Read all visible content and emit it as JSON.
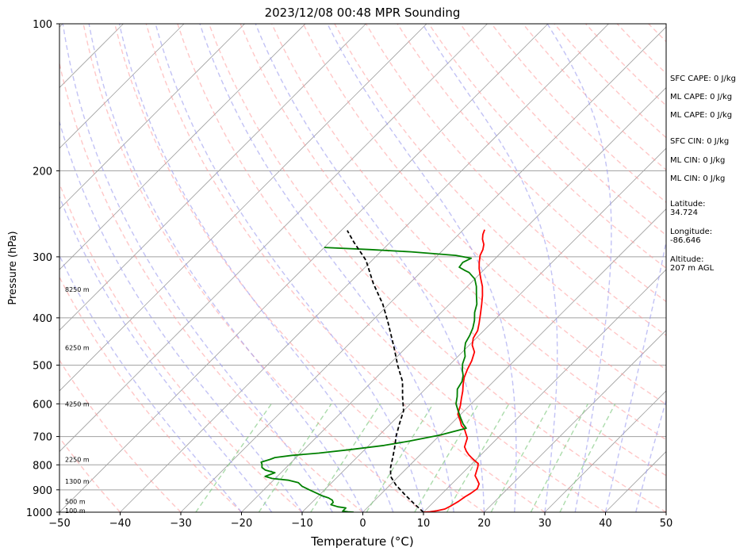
{
  "chart_data": {
    "type": "line",
    "title": "2023/12/08 00:48 MPR Sounding",
    "xlabel": "Temperature (°C)",
    "ylabel": "Pressure (hPa)",
    "xlim": [
      -50,
      50
    ],
    "ylim": [
      1000,
      100
    ],
    "yscale": "log",
    "grid": true,
    "x_ticks": [
      "−50",
      "−40",
      "−30",
      "−20",
      "−10",
      "0",
      "10",
      "20",
      "30",
      "40",
      "50"
    ],
    "x_tick_values": [
      -50,
      -40,
      -30,
      -20,
      -10,
      0,
      10,
      20,
      30,
      40,
      50
    ],
    "y_ticks": [
      "100",
      "200",
      "300",
      "400",
      "500",
      "600",
      "700",
      "800",
      "900",
      "1000"
    ],
    "y_tick_values": [
      100,
      200,
      300,
      400,
      500,
      600,
      700,
      800,
      900,
      1000
    ],
    "height_labels": [
      {
        "text": "8250 m",
        "p": 350
      },
      {
        "text": "6250 m",
        "p": 460
      },
      {
        "text": "4250 m",
        "p": 600
      },
      {
        "text": "2250 m",
        "p": 780
      },
      {
        "text": "1300 m",
        "p": 865
      },
      {
        "text": "500 m",
        "p": 950
      },
      {
        "text": "100 m",
        "p": 993
      }
    ],
    "series": [
      {
        "name": "",
        "color": "#ff0000",
        "points": [
          [
            10,
            1000
          ],
          [
            11,
            998
          ],
          [
            12,
            993
          ],
          [
            13,
            985
          ],
          [
            13.5,
            970
          ],
          [
            14,
            950
          ],
          [
            14.3,
            930
          ],
          [
            14.7,
            915
          ],
          [
            15,
            895
          ],
          [
            14.5,
            875
          ],
          [
            13.5,
            858
          ],
          [
            12.5,
            842
          ],
          [
            12,
            825
          ],
          [
            11.5,
            808
          ],
          [
            11,
            795
          ],
          [
            10,
            785
          ],
          [
            9,
            774
          ],
          [
            8,
            763
          ],
          [
            7,
            750
          ],
          [
            6,
            735
          ],
          [
            5.5,
            720
          ],
          [
            5,
            705
          ],
          [
            4,
            690
          ],
          [
            3,
            675
          ],
          [
            2,
            665
          ],
          [
            1,
            650
          ],
          [
            -0.5,
            630
          ],
          [
            -1.5,
            605
          ],
          [
            -2.5,
            585
          ],
          [
            -3.5,
            565
          ],
          [
            -4.5,
            548
          ],
          [
            -5.5,
            530
          ],
          [
            -6.3,
            510
          ],
          [
            -7,
            490
          ],
          [
            -8,
            470
          ],
          [
            -9.5,
            455
          ],
          [
            -10.5,
            440
          ],
          [
            -11,
            425
          ],
          [
            -12,
            410
          ],
          [
            -13.5,
            390
          ],
          [
            -14.7,
            375
          ],
          [
            -16,
            360
          ],
          [
            -17.5,
            345
          ],
          [
            -19,
            333
          ],
          [
            -20,
            325
          ],
          [
            -21,
            317
          ],
          [
            -22,
            308
          ],
          [
            -23,
            298
          ],
          [
            -23.5,
            290
          ],
          [
            -24.2,
            283
          ],
          [
            -25.3,
            276
          ],
          [
            -26,
            270
          ],
          [
            -26.5,
            264
          ]
        ]
      },
      {
        "name": "",
        "color": "#008000",
        "points": [
          [
            -1.5,
            1000
          ],
          [
            -2.5,
            998
          ],
          [
            -3.5,
            995
          ],
          [
            -3.5,
            980
          ],
          [
            -5,
            975
          ],
          [
            -6.5,
            965
          ],
          [
            -6.5,
            955
          ],
          [
            -7,
            945
          ],
          [
            -8,
            935
          ],
          [
            -9.5,
            925
          ],
          [
            -11,
            912
          ],
          [
            -12.5,
            900
          ],
          [
            -14.3,
            885
          ],
          [
            -15.5,
            870
          ],
          [
            -17.5,
            860
          ],
          [
            -20.5,
            853
          ],
          [
            -22,
            845
          ],
          [
            -21,
            830
          ],
          [
            -23,
            820
          ],
          [
            -24,
            810
          ],
          [
            -24.5,
            798
          ],
          [
            -25,
            790
          ],
          [
            -24,
            780
          ],
          [
            -23.5,
            773
          ],
          [
            -21,
            765
          ],
          [
            -17,
            757
          ],
          [
            -12.5,
            745
          ],
          [
            -7.5,
            730
          ],
          [
            -4,
            715
          ],
          [
            0,
            695
          ],
          [
            3.2,
            673
          ],
          [
            2,
            660
          ],
          [
            0.5,
            640
          ],
          [
            -1,
            620
          ],
          [
            -2.5,
            600
          ],
          [
            -3.5,
            580
          ],
          [
            -4.7,
            560
          ],
          [
            -5.2,
            540
          ],
          [
            -6,
            525
          ],
          [
            -7,
            512
          ],
          [
            -8,
            497
          ],
          [
            -8.8,
            480
          ],
          [
            -10,
            465
          ],
          [
            -11,
            450
          ],
          [
            -11.5,
            435
          ],
          [
            -12.2,
            420
          ],
          [
            -13.2,
            405
          ],
          [
            -14.5,
            390
          ],
          [
            -15.5,
            375
          ],
          [
            -17,
            360
          ],
          [
            -18.5,
            345
          ],
          [
            -20,
            333
          ],
          [
            -21,
            328
          ],
          [
            -22,
            323
          ],
          [
            -23,
            320
          ],
          [
            -24.5,
            315
          ],
          [
            -24.7,
            308
          ],
          [
            -24,
            302
          ],
          [
            -27,
            298
          ],
          [
            -35,
            293
          ],
          [
            -42,
            290
          ],
          [
            -50,
            287
          ]
        ]
      },
      {
        "name": "",
        "color": "#000000",
        "dashed": true,
        "points": [
          [
            10,
            1000
          ],
          [
            7,
            960
          ],
          [
            4,
            920
          ],
          [
            1,
            880
          ],
          [
            -1.3,
            845
          ],
          [
            -2.8,
            810
          ],
          [
            -4,
            775
          ],
          [
            -5.5,
            735
          ],
          [
            -7,
            700
          ],
          [
            -8.5,
            660
          ],
          [
            -10,
            620
          ],
          [
            -12.5,
            580
          ],
          [
            -15,
            540
          ],
          [
            -18.5,
            500
          ],
          [
            -22,
            460
          ],
          [
            -27,
            410
          ],
          [
            -31,
            375
          ],
          [
            -36,
            340
          ],
          [
            -41,
            305
          ],
          [
            -46,
            280
          ],
          [
            -49,
            265
          ]
        ]
      }
    ]
  },
  "annotations": [
    {
      "text": "SFC CAPE: 0 J/kg"
    },
    {
      "text": "ML CAPE: 0 J/kg"
    },
    {
      "text": "ML CAPE: 0 J/kg"
    },
    {
      "text": "SFC CIN: 0 J/kg"
    },
    {
      "text": "ML CIN: 0 J/kg"
    },
    {
      "text": "ML CIN: 0 J/kg"
    },
    {
      "lines": [
        "Latitude:",
        "34.724"
      ]
    },
    {
      "lines": [
        "Longitude:",
        "-86.646"
      ]
    },
    {
      "lines": [
        "Altitude:",
        "207 m AGL"
      ]
    }
  ],
  "colors": {
    "temperature": "#ff0000",
    "dewpoint": "#008000",
    "parcel": "#000000",
    "dry_adiabat": "#ff9999",
    "moist_adiabat": "#9999ee",
    "mixing_ratio": "#88cc88",
    "isotherm": "#a0a0a0"
  }
}
